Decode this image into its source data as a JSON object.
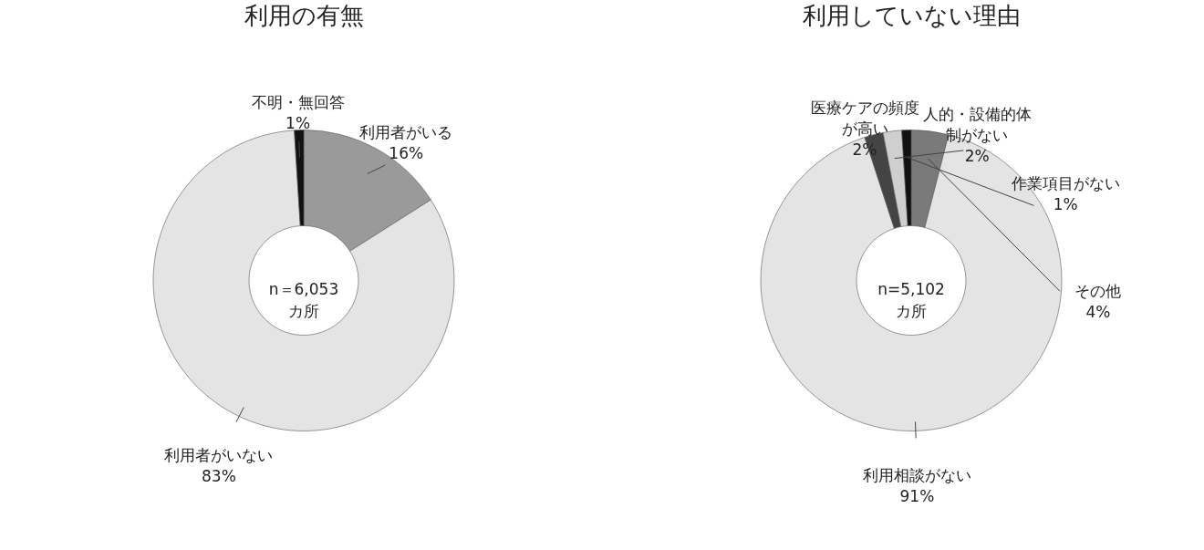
{
  "chart_data": [
    {
      "type": "donut",
      "title": "利用の有無",
      "categories": [
        "利用者がいる",
        "利用者がいない",
        "不明・無回答"
      ],
      "values": [
        16,
        83,
        1
      ],
      "value_labels": [
        "16%",
        "83%",
        "1%"
      ],
      "colors": [
        "#9a9a9a",
        "#e4e4e4",
        "#111111"
      ],
      "annotations": [
        "n＝6,053\nカ所"
      ]
    },
    {
      "type": "donut",
      "title": "利用していない理由",
      "categories": [
        "その他",
        "利用相談がない",
        "医療ケアの頻度が高い",
        "人的・設備的体制がない",
        "作業項目がない"
      ],
      "values": [
        4,
        91,
        2,
        2,
        1
      ],
      "value_labels": [
        "4%",
        "91%",
        "2%",
        "2%",
        "1%"
      ],
      "colors": [
        "#7a7a7a",
        "#e4e4e4",
        "#444444",
        "#cfcfcf",
        "#111111"
      ],
      "annotations": [
        "n=5,102\nカ所"
      ]
    }
  ]
}
